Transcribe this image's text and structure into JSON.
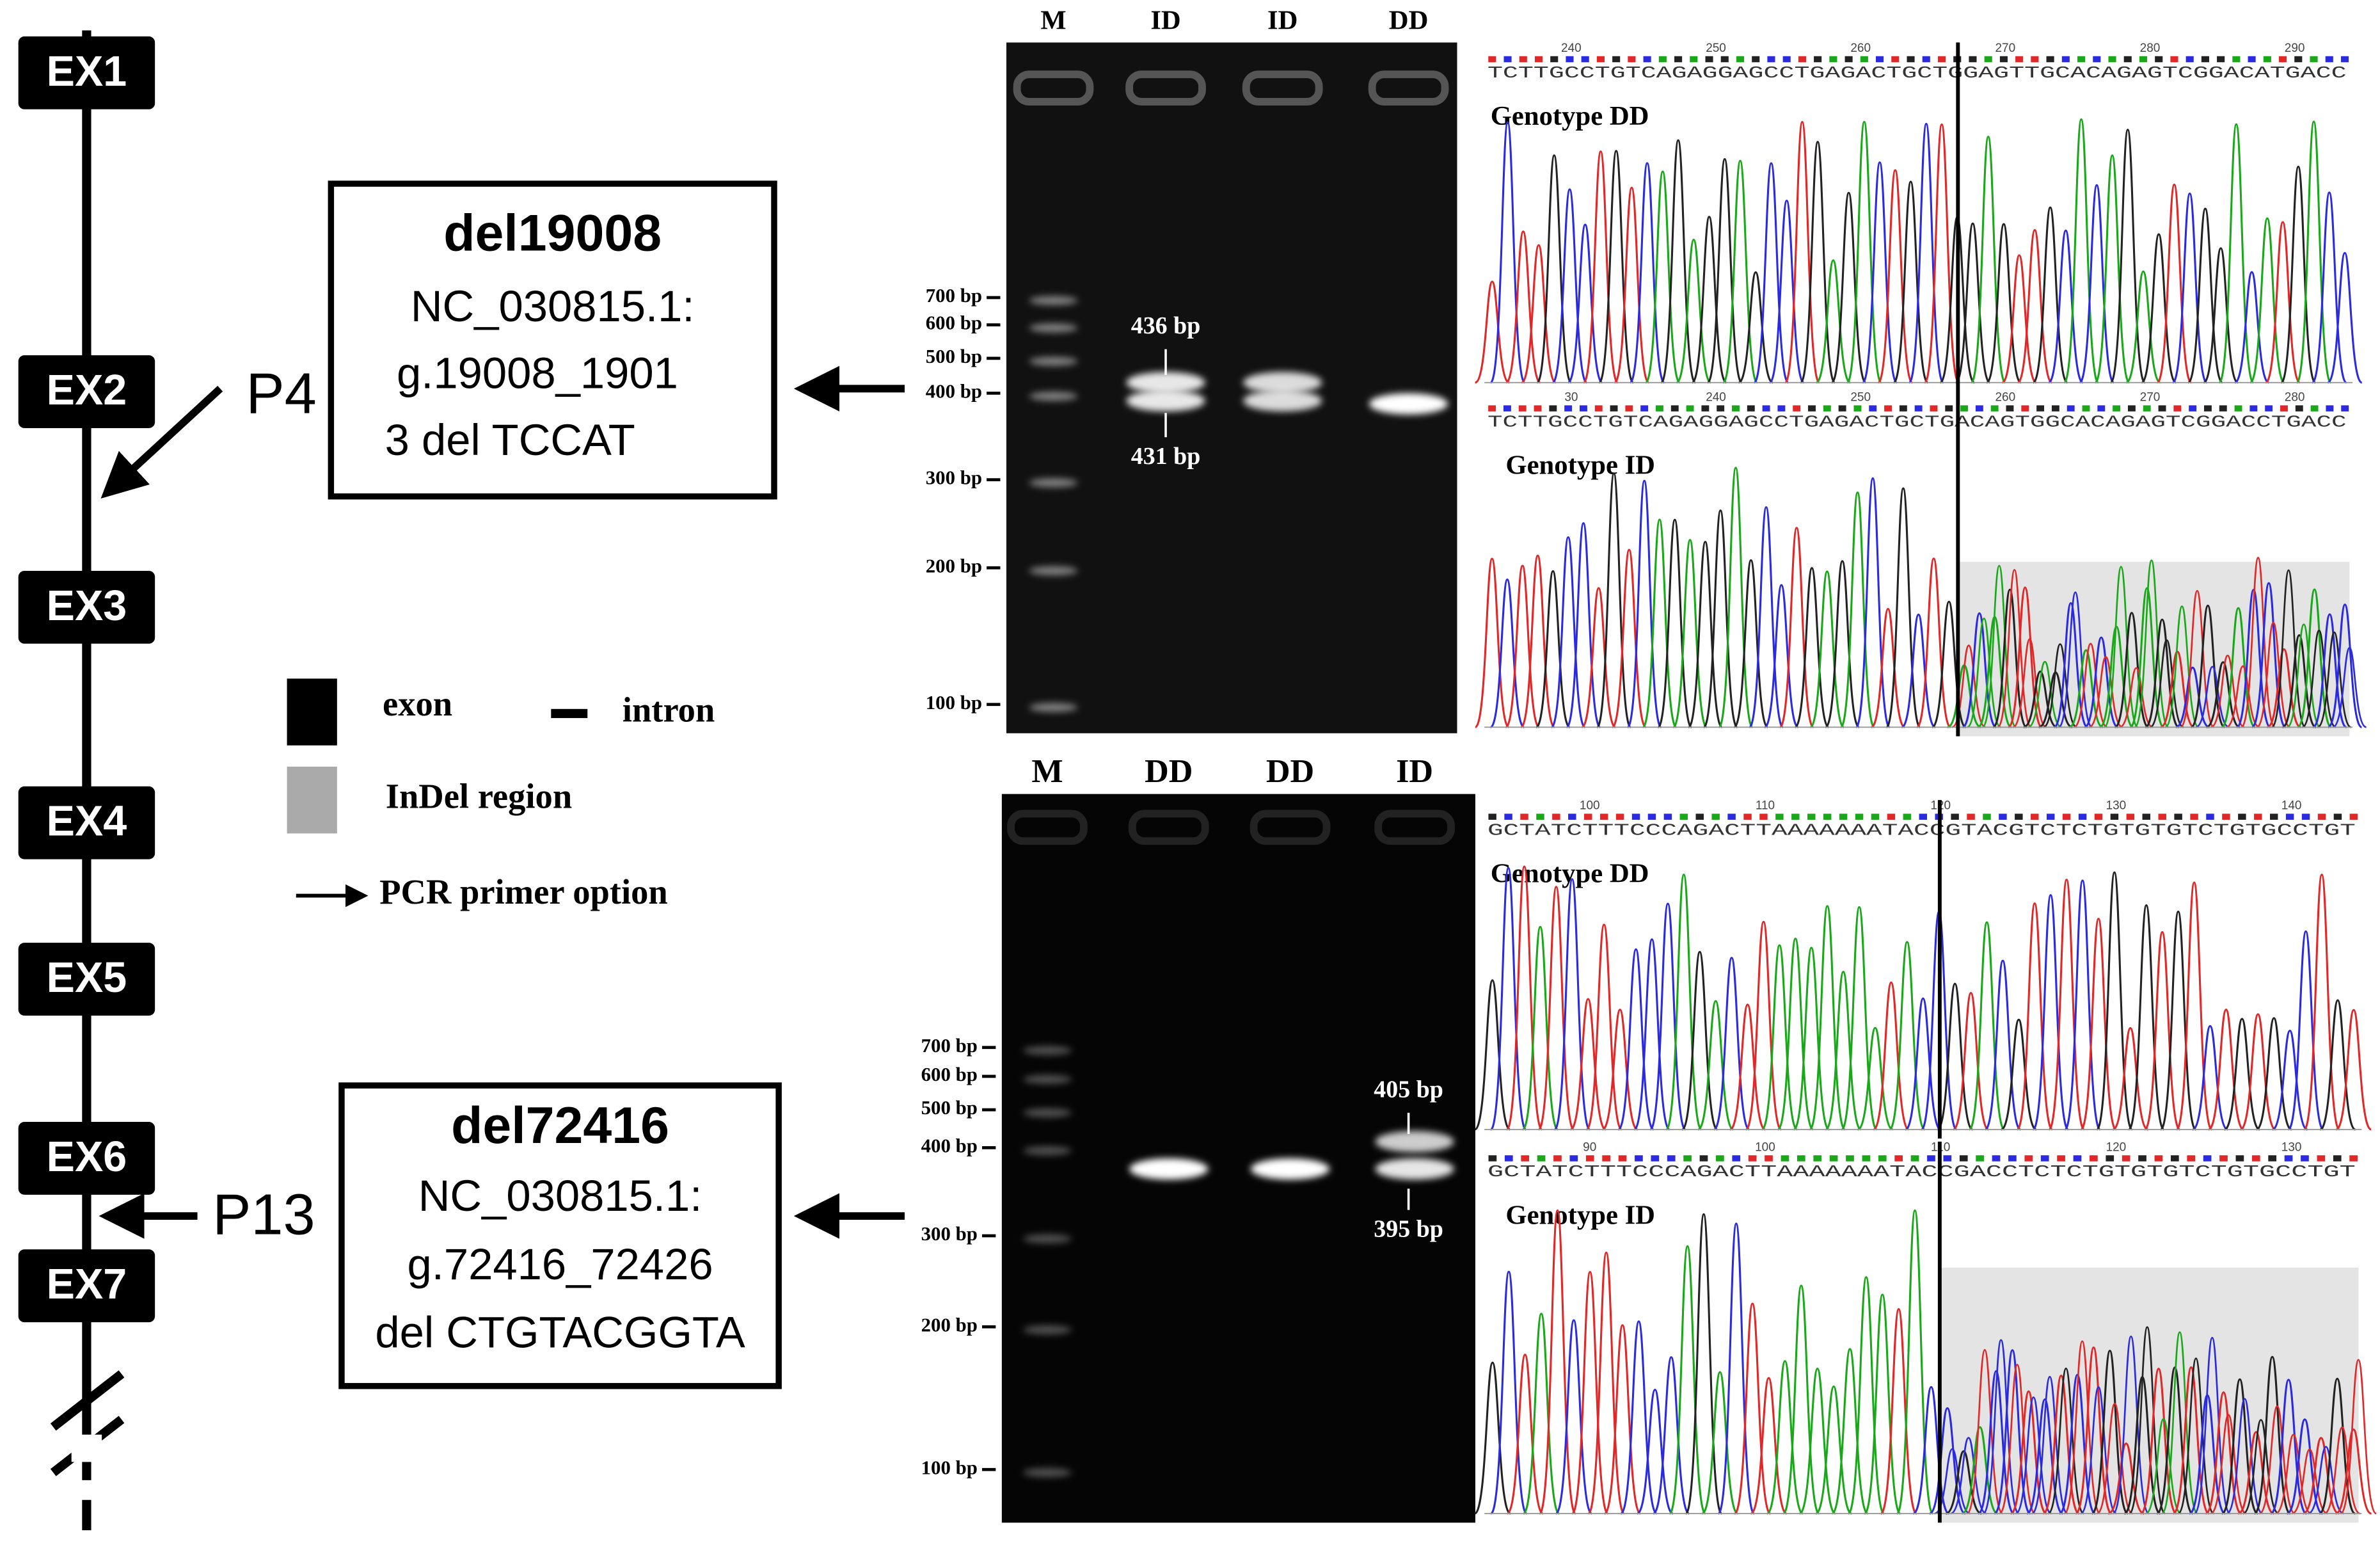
{
  "gene_diagram": {
    "exons": [
      "EX1",
      "EX2",
      "EX3",
      "EX4",
      "EX5",
      "EX6",
      "EX7"
    ],
    "primers": [
      "P4",
      "P13"
    ]
  },
  "indels": [
    {
      "name": "del19008",
      "lines": [
        "NC_030815.1:",
        "g.19008_1901",
        "3 del TCCAT"
      ]
    },
    {
      "name": "del72416",
      "lines": [
        "NC_030815.1:",
        "g.72416_72426",
        "del CTGTACGGTA"
      ]
    }
  ],
  "legend": {
    "exon": "exon",
    "intron": "intron",
    "indel": "InDel region",
    "primer": "PCR primer option"
  },
  "gels": [
    {
      "lanes": [
        "M",
        "ID",
        "ID",
        "DD"
      ],
      "ladder": [
        "700 bp",
        "600 bp",
        "500 bp",
        "400 bp",
        "300 bp",
        "200 bp",
        "100 bp"
      ],
      "band_labels": [
        "436 bp",
        "431 bp"
      ]
    },
    {
      "lanes": [
        "M",
        "DD",
        "DD",
        "ID"
      ],
      "ladder": [
        "700 bp",
        "600 bp",
        "500 bp",
        "400 bp",
        "300 bp",
        "200 bp",
        "100 bp"
      ],
      "band_labels": [
        "405 bp",
        "395 bp"
      ]
    }
  ],
  "chromatograms": [
    {
      "title": "Genotype DD",
      "positions": [
        240,
        250,
        260,
        270,
        280,
        290
      ],
      "sequence": "TCTTGCCTGTCAGAGGAGCCTGAGACTGCTGGAGTTGCACAGAGTCGGACATGACC"
    },
    {
      "title": "Genotype ID",
      "positions": [
        30,
        240,
        250,
        260,
        270,
        280
      ],
      "sequence": "TCTTGCCTGTCAGAGGAGCCTGAGACTGCTGACAGTGGCACAGAGTCGGACCTGACC"
    },
    {
      "title": "Genotype DD",
      "positions": [
        100,
        110,
        120,
        130,
        140
      ],
      "sequence": "GCTATCTTTCCCAGACTTAAAAAAATACCGTACGTCTCTGTGTGTCTGTGCCTGT"
    },
    {
      "title": "Genotype ID",
      "positions": [
        90,
        100,
        110,
        120,
        130
      ],
      "sequence": "GCTATCTTTCCCAGACTTAAAAAAATACCGACCTCTCTGTGTGTCTGTGCCTGT"
    }
  ]
}
